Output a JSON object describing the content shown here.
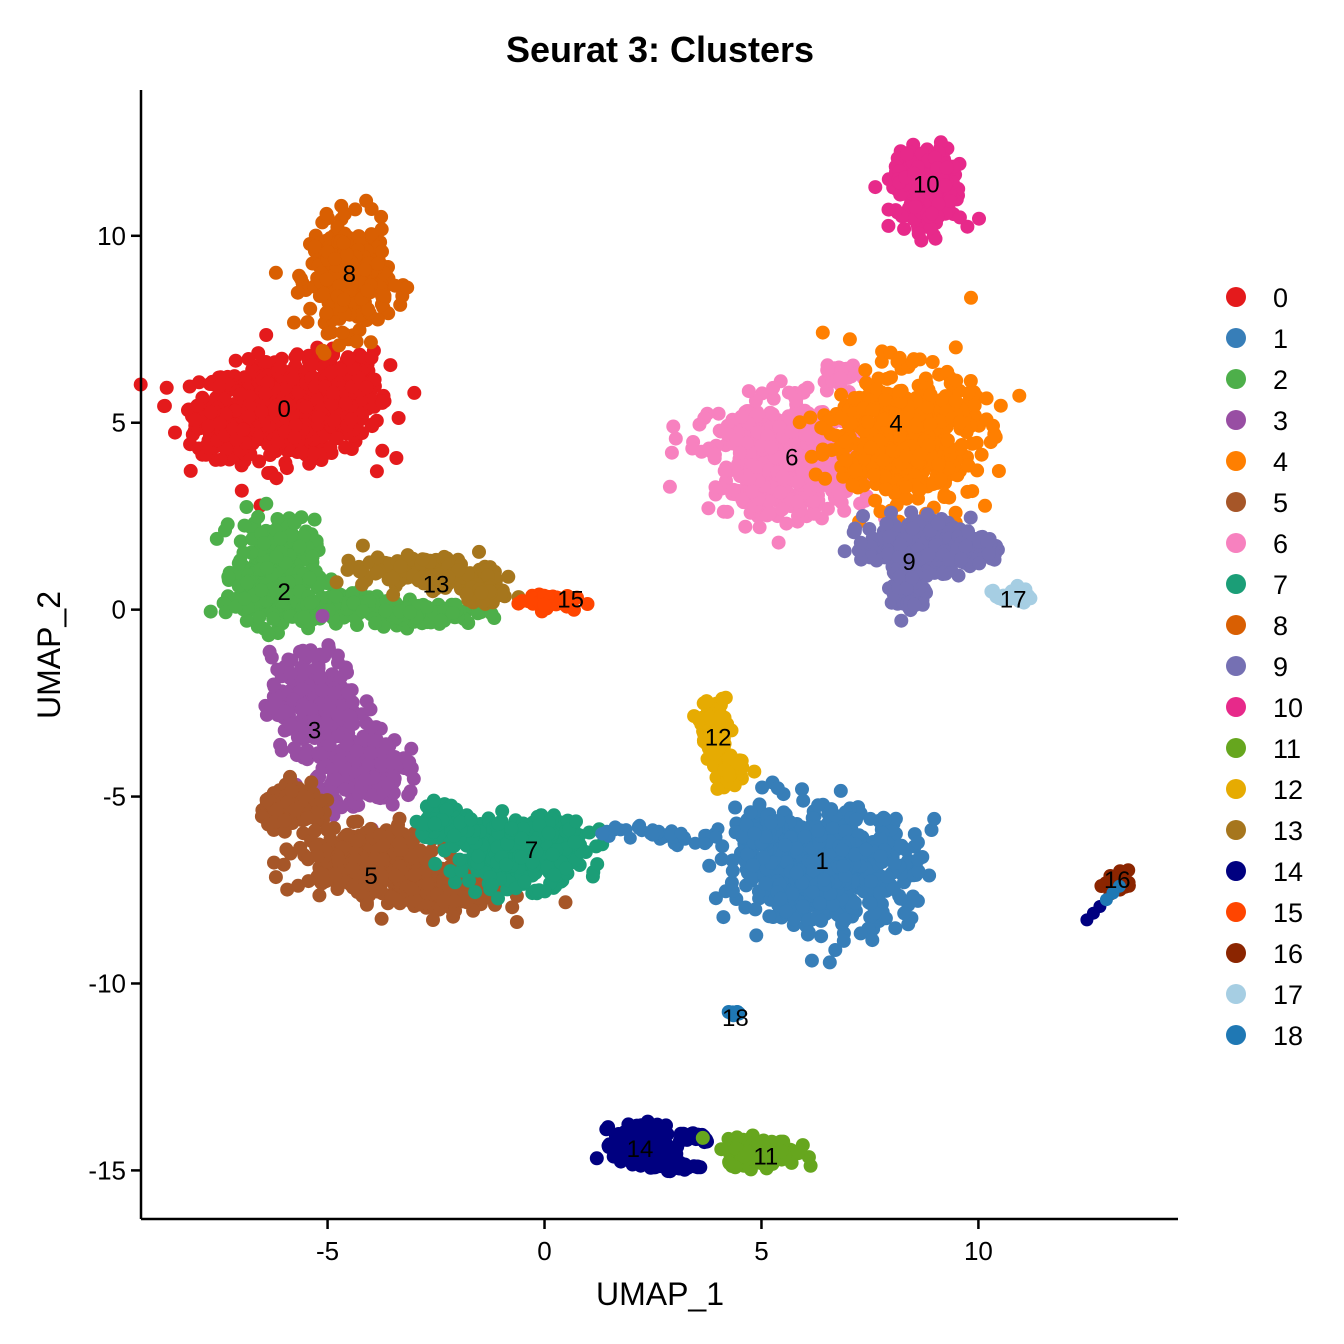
{
  "chart_data": {
    "type": "scatter",
    "title": "Seurat 3: Clusters",
    "xlabel": "UMAP_1",
    "ylabel": "UMAP_2",
    "xlim": [
      -9.3,
      14.6
    ],
    "ylim": [
      -16.3,
      13.9
    ],
    "xticks": [
      -5,
      0,
      5,
      10
    ],
    "yticks": [
      -15,
      -10,
      -5,
      0,
      5,
      10
    ],
    "grid": false,
    "legend_position": "right",
    "clusters": [
      {
        "name": "0",
        "color": "#E41A1C",
        "center": [
          -5.9,
          5.2
        ]
      },
      {
        "name": "1",
        "color": "#377EB8",
        "center": [
          6.5,
          -6.7
        ]
      },
      {
        "name": "2",
        "color": "#4DAF4A",
        "center": [
          -5.6,
          0.7
        ]
      },
      {
        "name": "3",
        "color": "#984EA3",
        "center": [
          -5.0,
          -3.2
        ]
      },
      {
        "name": "4",
        "color": "#FF7F00",
        "center": [
          8.1,
          4.7
        ]
      },
      {
        "name": "5",
        "color": "#A65628",
        "center": [
          -4.0,
          -6.9
        ]
      },
      {
        "name": "6",
        "color": "#F781BF",
        "center": [
          5.7,
          4.0
        ]
      },
      {
        "name": "7",
        "color": "#1B9E77",
        "center": [
          -0.7,
          -6.6
        ]
      },
      {
        "name": "8",
        "color": "#D95F02",
        "center": [
          -4.3,
          9.0
        ]
      },
      {
        "name": "9",
        "color": "#7570B3",
        "center": [
          8.6,
          1.6
        ]
      },
      {
        "name": "10",
        "color": "#E7298A",
        "center": [
          8.8,
          11.3
        ]
      },
      {
        "name": "11",
        "color": "#66A61E",
        "center": [
          5.0,
          -14.5
        ]
      },
      {
        "name": "12",
        "color": "#E6AB02",
        "center": [
          4.0,
          -3.6
        ]
      },
      {
        "name": "13",
        "color": "#A6761D",
        "center": [
          -2.5,
          0.9
        ]
      },
      {
        "name": "14",
        "color": "#000080",
        "center": [
          2.2,
          -14.4
        ]
      },
      {
        "name": "15",
        "color": "#FF4500",
        "center": [
          0.2,
          0.3
        ]
      },
      {
        "name": "16",
        "color": "#8B2500",
        "center": [
          13.3,
          -7.3
        ]
      },
      {
        "name": "17",
        "color": "#A6CEE3",
        "center": [
          10.7,
          0.4
        ]
      },
      {
        "name": "18",
        "color": "#1F78B4",
        "center": [
          4.3,
          -10.8
        ]
      }
    ],
    "cluster_labels": [
      {
        "text": "0",
        "x": -6.0,
        "y": 5.4
      },
      {
        "text": "1",
        "x": 6.4,
        "y": -6.7
      },
      {
        "text": "2",
        "x": -6.0,
        "y": 0.5
      },
      {
        "text": "3",
        "x": -5.3,
        "y": -3.2
      },
      {
        "text": "4",
        "x": 8.1,
        "y": 5.0
      },
      {
        "text": "5",
        "x": -4.0,
        "y": -7.1
      },
      {
        "text": "6",
        "x": 5.7,
        "y": 4.1
      },
      {
        "text": "7",
        "x": -0.3,
        "y": -6.4
      },
      {
        "text": "8",
        "x": -4.5,
        "y": 9.0
      },
      {
        "text": "9",
        "x": 8.4,
        "y": 1.3
      },
      {
        "text": "10",
        "x": 8.8,
        "y": 11.4
      },
      {
        "text": "11",
        "x": 5.1,
        "y": -14.6
      },
      {
        "text": "12",
        "x": 4.0,
        "y": -3.4
      },
      {
        "text": "13",
        "x": -2.5,
        "y": 0.7
      },
      {
        "text": "14",
        "x": 2.2,
        "y": -14.4
      },
      {
        "text": "15",
        "x": 0.6,
        "y": 0.3
      },
      {
        "text": "16",
        "x": 13.2,
        "y": -7.2
      },
      {
        "text": "17",
        "x": 10.8,
        "y": 0.3
      },
      {
        "text": "18",
        "x": 4.4,
        "y": -10.9
      }
    ]
  }
}
